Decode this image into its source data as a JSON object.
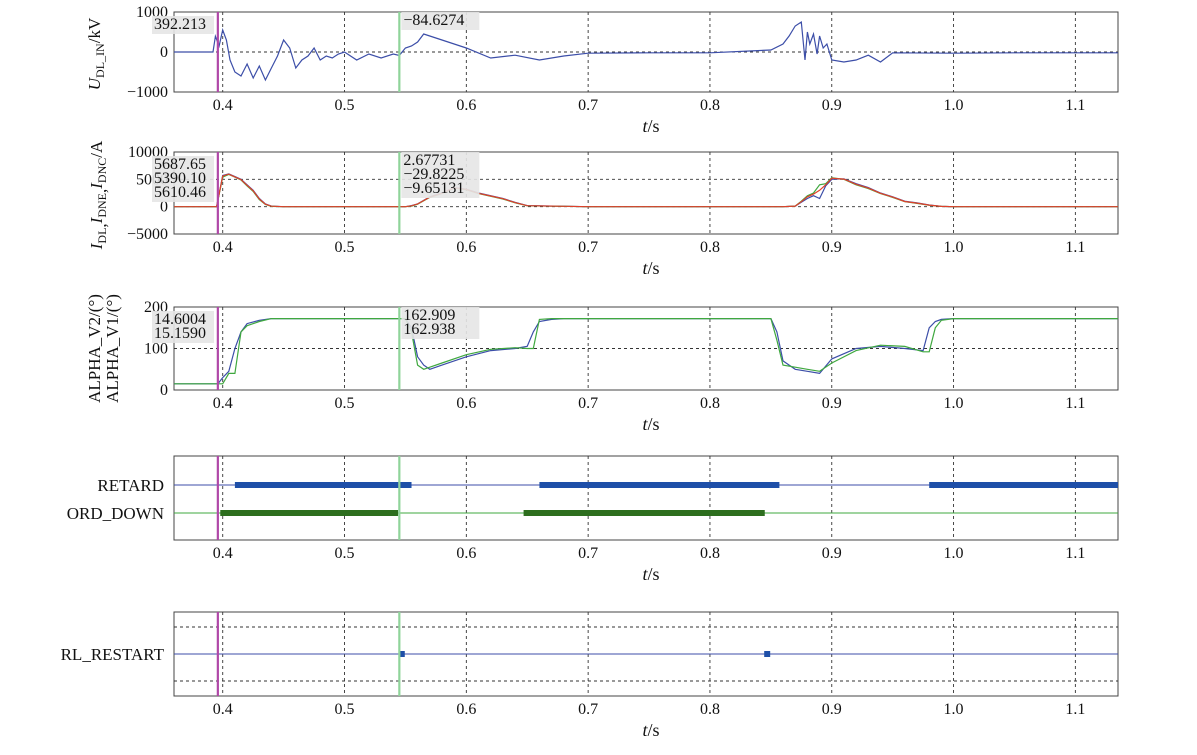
{
  "colors": {
    "blue": "#3c4ea8",
    "green": "#3fa83f",
    "red": "#e0402a",
    "dark_green": "#2d6e1e",
    "dark_blue": "#1e4fa8",
    "cursor_magenta": "#b048a8",
    "cursor_green": "#8fd49a",
    "grid": "#333333"
  },
  "chart_data": [
    {
      "type": "line",
      "ylabel_main": "U",
      "ylabel_sub": "DL_IN",
      "ylabel_unit": "/kV",
      "xlabel_italic": "t",
      "xlabel_unit": "/s",
      "xlim": [
        0.36,
        1.135
      ],
      "ylim": [
        -1000,
        1000
      ],
      "yticks": [
        "1000",
        "0",
        "−1000"
      ],
      "ytick_values": [
        1000,
        0,
        -1000
      ],
      "xticks": [
        "0.4",
        "0.5",
        "0.6",
        "0.7",
        "0.8",
        "0.9",
        "1.0",
        "1.1"
      ],
      "xtick_values": [
        0.4,
        0.5,
        0.6,
        0.7,
        0.8,
        0.9,
        1.0,
        1.1
      ],
      "cursors": [
        0.396,
        0.545
      ],
      "cursor_labels": [
        [
          "392.213"
        ],
        [
          "−84.6274"
        ]
      ],
      "series": [
        {
          "color": "#3c4ea8",
          "x": [
            0.36,
            0.392,
            0.394,
            0.397,
            0.4,
            0.403,
            0.406,
            0.41,
            0.415,
            0.42,
            0.425,
            0.43,
            0.435,
            0.44,
            0.445,
            0.45,
            0.455,
            0.46,
            0.465,
            0.47,
            0.475,
            0.48,
            0.485,
            0.49,
            0.495,
            0.5,
            0.51,
            0.52,
            0.53,
            0.54,
            0.545,
            0.55,
            0.555,
            0.56,
            0.565,
            0.57,
            0.58,
            0.6,
            0.62,
            0.64,
            0.66,
            0.68,
            0.7,
            0.75,
            0.8,
            0.85,
            0.86,
            0.865,
            0.87,
            0.875,
            0.878,
            0.88,
            0.882,
            0.885,
            0.888,
            0.89,
            0.893,
            0.896,
            0.9,
            0.91,
            0.92,
            0.93,
            0.94,
            0.95,
            1.0,
            1.05,
            1.1,
            1.135
          ],
          "y": [
            0,
            0,
            392,
            150,
            550,
            300,
            -200,
            -500,
            -600,
            -300,
            -650,
            -350,
            -700,
            -400,
            -100,
            300,
            100,
            -400,
            -200,
            -100,
            100,
            -200,
            -100,
            -150,
            -50,
            0,
            -200,
            -50,
            -150,
            -50,
            -85,
            100,
            150,
            250,
            450,
            400,
            300,
            100,
            -150,
            -80,
            -200,
            -100,
            -30,
            -20,
            -20,
            50,
            200,
            400,
            650,
            750,
            -200,
            500,
            200,
            450,
            -50,
            400,
            100,
            200,
            -200,
            -250,
            -200,
            -80,
            -250,
            -20,
            -30,
            -20,
            -20,
            -20
          ]
        }
      ]
    },
    {
      "type": "line",
      "ylabel_main": "I",
      "ylabel_subs": [
        "DL",
        "DNE",
        "DNC"
      ],
      "ylabel_unit": "/A",
      "xlabel_italic": "t",
      "xlabel_unit": "/s",
      "xlim": [
        0.36,
        1.135
      ],
      "ylim": [
        -5000,
        10000
      ],
      "yticks": [
        "10000",
        "5000",
        "0",
        "−5000"
      ],
      "ytick_values": [
        10000,
        5000,
        0,
        -5000
      ],
      "xticks": [
        "0.4",
        "0.5",
        "0.6",
        "0.7",
        "0.8",
        "0.9",
        "1.0",
        "1.1"
      ],
      "xtick_values": [
        0.4,
        0.5,
        0.6,
        0.7,
        0.8,
        0.9,
        1.0,
        1.1
      ],
      "cursors": [
        0.396,
        0.545
      ],
      "cursor_labels": [
        [
          "5687.65",
          "5390.10",
          "5610.46"
        ],
        [
          "2.67731",
          "−29.8225",
          "−9.65131"
        ]
      ],
      "series": [
        {
          "color": "#3c4ea8",
          "x": [
            0.36,
            0.395,
            0.4,
            0.405,
            0.41,
            0.415,
            0.42,
            0.425,
            0.43,
            0.435,
            0.44,
            0.45,
            0.46,
            0.5,
            0.55,
            0.555,
            0.56,
            0.57,
            0.58,
            0.59,
            0.6,
            0.61,
            0.62,
            0.63,
            0.64,
            0.65,
            0.7,
            0.8,
            0.85,
            0.86,
            0.87,
            0.875,
            0.88,
            0.885,
            0.89,
            0.895,
            0.9,
            0.91,
            0.92,
            0.93,
            0.94,
            0.95,
            0.96,
            0.97,
            0.98,
            0.99,
            1.0,
            1.135
          ],
          "y": [
            0,
            0,
            5700,
            6000,
            5500,
            5000,
            4000,
            3000,
            1500,
            500,
            100,
            0,
            0,
            0,
            0,
            200,
            500,
            1800,
            2500,
            3500,
            3200,
            2500,
            2000,
            1500,
            800,
            200,
            0,
            0,
            0,
            0,
            100,
            800,
            1500,
            2000,
            1500,
            3800,
            5000,
            5100,
            4200,
            3500,
            2500,
            1800,
            1000,
            700,
            300,
            50,
            0,
            0
          ]
        },
        {
          "color": "#3fa83f",
          "x": [
            0.36,
            0.395,
            0.4,
            0.405,
            0.41,
            0.415,
            0.42,
            0.425,
            0.43,
            0.435,
            0.44,
            0.45,
            0.46,
            0.5,
            0.55,
            0.555,
            0.56,
            0.57,
            0.58,
            0.59,
            0.6,
            0.61,
            0.62,
            0.63,
            0.64,
            0.65,
            0.7,
            0.8,
            0.85,
            0.86,
            0.87,
            0.875,
            0.88,
            0.885,
            0.89,
            0.895,
            0.9,
            0.91,
            0.92,
            0.93,
            0.94,
            0.95,
            0.96,
            0.97,
            0.98,
            0.99,
            1.0,
            1.135
          ],
          "y": [
            0,
            0,
            5400,
            5900,
            5400,
            4900,
            3800,
            2800,
            1300,
            400,
            50,
            0,
            0,
            0,
            0,
            100,
            450,
            1700,
            2400,
            3400,
            3100,
            2400,
            1900,
            1400,
            700,
            150,
            0,
            0,
            0,
            0,
            100,
            1000,
            2000,
            2500,
            4000,
            4200,
            5300,
            5000,
            4000,
            3300,
            2400,
            1700,
            900,
            600,
            250,
            50,
            0,
            0
          ]
        },
        {
          "color": "#e0402a",
          "x": [
            0.36,
            0.395,
            0.4,
            0.405,
            0.41,
            0.415,
            0.42,
            0.425,
            0.43,
            0.435,
            0.44,
            0.45,
            0.46,
            0.5,
            0.55,
            0.555,
            0.56,
            0.57,
            0.58,
            0.59,
            0.6,
            0.61,
            0.62,
            0.63,
            0.64,
            0.65,
            0.7,
            0.8,
            0.85,
            0.86,
            0.87,
            0.875,
            0.88,
            0.885,
            0.89,
            0.895,
            0.9,
            0.91,
            0.92,
            0.93,
            0.94,
            0.95,
            0.96,
            0.97,
            0.98,
            0.99,
            1.0,
            1.135
          ],
          "y": [
            0,
            0,
            5600,
            5950,
            5450,
            4950,
            3900,
            2900,
            1400,
            450,
            80,
            0,
            0,
            0,
            0,
            150,
            480,
            1750,
            2450,
            3450,
            3150,
            2450,
            1950,
            1450,
            750,
            180,
            0,
            0,
            0,
            0,
            100,
            900,
            1800,
            2300,
            3000,
            4000,
            5200,
            5050,
            4100,
            3400,
            2450,
            1750,
            950,
            650,
            280,
            50,
            0,
            0
          ]
        }
      ]
    },
    {
      "type": "line",
      "ylabel_line1": "ALPHA_V2/(°)",
      "ylabel_line2": "ALPHA_V1/(°)",
      "xlabel_italic": "t",
      "xlabel_unit": "/s",
      "xlim": [
        0.36,
        1.135
      ],
      "ylim": [
        0,
        200
      ],
      "yticks": [
        "200",
        "100",
        "0"
      ],
      "ytick_values": [
        200,
        100,
        0
      ],
      "xticks": [
        "0.4",
        "0.5",
        "0.6",
        "0.7",
        "0.8",
        "0.9",
        "1.0",
        "1.1"
      ],
      "xtick_values": [
        0.4,
        0.5,
        0.6,
        0.7,
        0.8,
        0.9,
        1.0,
        1.1
      ],
      "cursors": [
        0.396,
        0.545
      ],
      "cursor_labels": [
        [
          "14.6004",
          "15.1590"
        ],
        [
          "162.909",
          "162.938"
        ]
      ],
      "series": [
        {
          "color": "#3c4ea8",
          "x": [
            0.36,
            0.396,
            0.4,
            0.405,
            0.41,
            0.415,
            0.42,
            0.43,
            0.44,
            0.545,
            0.55,
            0.555,
            0.56,
            0.565,
            0.57,
            0.58,
            0.6,
            0.62,
            0.64,
            0.65,
            0.655,
            0.66,
            0.67,
            0.68,
            0.7,
            0.8,
            0.85,
            0.855,
            0.86,
            0.87,
            0.88,
            0.89,
            0.9,
            0.92,
            0.94,
            0.96,
            0.975,
            0.98,
            0.985,
            0.99,
            1.0,
            1.135
          ],
          "y": [
            15,
            15,
            30,
            45,
            100,
            140,
            160,
            168,
            172,
            172,
            172,
            150,
            80,
            60,
            50,
            60,
            80,
            95,
            100,
            105,
            140,
            165,
            170,
            172,
            172,
            172,
            172,
            140,
            70,
            50,
            45,
            40,
            75,
            100,
            105,
            100,
            95,
            150,
            165,
            170,
            172,
            172
          ]
        },
        {
          "color": "#3fa83f",
          "x": [
            0.36,
            0.396,
            0.4,
            0.405,
            0.41,
            0.415,
            0.42,
            0.43,
            0.44,
            0.545,
            0.55,
            0.555,
            0.56,
            0.565,
            0.57,
            0.58,
            0.6,
            0.62,
            0.64,
            0.65,
            0.655,
            0.66,
            0.67,
            0.68,
            0.7,
            0.8,
            0.85,
            0.855,
            0.86,
            0.87,
            0.88,
            0.89,
            0.9,
            0.92,
            0.94,
            0.96,
            0.975,
            0.98,
            0.985,
            0.99,
            1.0,
            1.135
          ],
          "y": [
            15,
            15,
            15,
            40,
            40,
            140,
            155,
            165,
            172,
            172,
            172,
            140,
            60,
            50,
            55,
            65,
            85,
            98,
            102,
            100,
            100,
            170,
            172,
            172,
            172,
            172,
            172,
            120,
            60,
            55,
            50,
            45,
            65,
            95,
            108,
            105,
            92,
            92,
            150,
            168,
            172,
            172
          ]
        }
      ]
    },
    {
      "type": "timeline",
      "signals": [
        "RETARD",
        "ORD_DOWN"
      ],
      "xlabel_italic": "t",
      "xlabel_unit": "/s",
      "xlim": [
        0.36,
        1.135
      ],
      "xticks": [
        "0.4",
        "0.5",
        "0.6",
        "0.7",
        "0.8",
        "0.9",
        "1.0",
        "1.1"
      ],
      "xtick_values": [
        0.4,
        0.5,
        0.6,
        0.7,
        0.8,
        0.9,
        1.0,
        1.1
      ],
      "cursors": [
        0.396,
        0.545
      ],
      "active_intervals": [
        {
          "signal": "RETARD",
          "color": "#1e4fa8",
          "line_color": "#3c4ea8",
          "intervals": [
            [
              0.41,
              0.555
            ],
            [
              0.66,
              0.857
            ],
            [
              0.98,
              1.135
            ]
          ]
        },
        {
          "signal": "ORD_DOWN",
          "color": "#2d6e1e",
          "line_color": "#3fa83f",
          "intervals": [
            [
              0.398,
              0.544
            ],
            [
              0.647,
              0.845
            ]
          ]
        }
      ]
    },
    {
      "type": "timeline",
      "signals": [
        "RL_RESTART"
      ],
      "xlabel_italic": "t",
      "xlabel_unit": "/s",
      "xlim": [
        0.36,
        1.135
      ],
      "xticks": [
        "0.4",
        "0.5",
        "0.6",
        "0.7",
        "0.8",
        "0.9",
        "1.0",
        "1.1"
      ],
      "xtick_values": [
        0.4,
        0.5,
        0.6,
        0.7,
        0.8,
        0.9,
        1.0,
        1.1
      ],
      "cursors": [
        0.396,
        0.545
      ],
      "pulses": [
        0.547,
        0.847
      ],
      "pulse_color": "#1e4fa8",
      "line_color": "#3c4ea8"
    }
  ]
}
